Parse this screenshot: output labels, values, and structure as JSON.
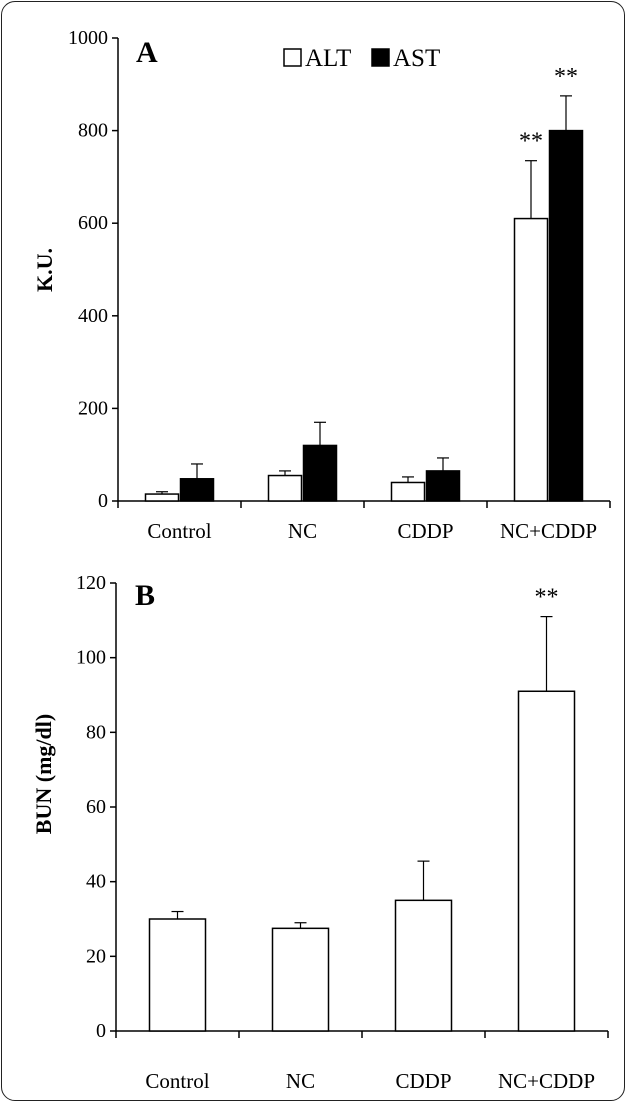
{
  "chart_data": [
    {
      "panel_label": "A",
      "type": "bar",
      "categories": [
        "Control",
        "NC",
        "CDDP",
        "NC+CDDP"
      ],
      "series": [
        {
          "name": "ALT",
          "values": [
            15,
            55,
            40,
            610
          ],
          "errors": [
            5,
            10,
            12,
            125
          ],
          "color": "#ffffff"
        },
        {
          "name": "AST",
          "values": [
            48,
            120,
            65,
            800
          ],
          "errors": [
            32,
            50,
            28,
            75
          ],
          "color": "#000000"
        }
      ],
      "annotations": [
        {
          "series": "ALT",
          "category": "NC+CDDP",
          "text": "**"
        },
        {
          "series": "AST",
          "category": "NC+CDDP",
          "text": "**"
        }
      ],
      "xlabel": "",
      "ylabel": "K.U.",
      "ylim": [
        0,
        1000
      ],
      "yticks": [
        "0",
        "200",
        "400",
        "600",
        "800",
        "1000"
      ],
      "legend_position": "top-center",
      "grid": false
    },
    {
      "panel_label": "B",
      "type": "bar",
      "categories": [
        "Control",
        "NC",
        "CDDP",
        "NC+CDDP"
      ],
      "series": [
        {
          "values": [
            30,
            27.5,
            35,
            91
          ],
          "errors": [
            2,
            1.5,
            10.5,
            20
          ],
          "color": "#ffffff"
        }
      ],
      "annotations": [
        {
          "category": "NC+CDDP",
          "text": "**"
        }
      ],
      "xlabel": "",
      "ylabel": "BUN (mg/dl)",
      "ylim": [
        0,
        120
      ],
      "yticks": [
        "0",
        "20",
        "40",
        "60",
        "80",
        "100",
        "120"
      ],
      "grid": false
    }
  ]
}
